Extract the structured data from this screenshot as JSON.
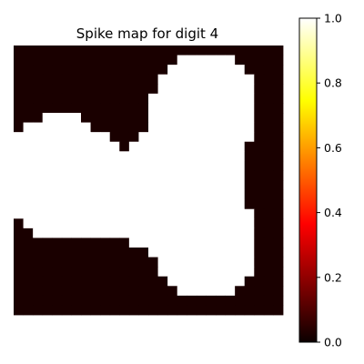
{
  "chart_data": {
    "type": "heatmap",
    "title": "Spike map for digit 4",
    "xlabel": "",
    "ylabel": "",
    "colormap": "hot",
    "colorbar": {
      "range": [
        0.0,
        1.0
      ],
      "ticks": [
        0.0,
        0.2,
        0.4,
        0.6,
        0.8,
        1.0
      ],
      "tick_labels": [
        "0.0",
        "0.2",
        "0.4",
        "0.6",
        "0.8",
        "1.0"
      ]
    },
    "grid": false,
    "axes_visible": false,
    "rows": 28,
    "cols": 28,
    "values": [
      [
        0,
        0,
        0,
        0,
        0,
        0,
        0,
        0,
        0,
        0,
        0,
        0,
        0,
        0,
        0,
        0,
        0,
        0,
        0,
        0,
        0,
        0,
        0,
        0,
        0,
        0,
        0,
        0
      ],
      [
        0,
        0,
        0,
        0,
        0,
        0,
        0,
        0,
        0,
        0,
        0,
        0,
        0,
        0,
        0,
        0,
        0,
        1,
        1,
        1,
        1,
        1,
        1,
        0,
        0,
        0,
        0,
        0
      ],
      [
        0,
        0,
        0,
        0,
        0,
        0,
        0,
        0,
        0,
        0,
        0,
        0,
        0,
        0,
        0,
        0,
        1,
        1,
        1,
        1,
        1,
        1,
        1,
        1,
        0,
        0,
        0,
        0
      ],
      [
        0,
        0,
        0,
        0,
        0,
        0,
        0,
        0,
        0,
        0,
        0,
        0,
        0,
        0,
        0,
        1,
        1,
        1,
        1,
        1,
        1,
        1,
        1,
        1,
        1,
        0,
        0,
        0
      ],
      [
        0,
        0,
        0,
        0,
        0,
        0,
        0,
        0,
        0,
        0,
        0,
        0,
        0,
        0,
        0,
        1,
        1,
        1,
        1,
        1,
        1,
        1,
        1,
        1,
        1,
        0,
        0,
        0
      ],
      [
        0,
        0,
        0,
        0,
        0,
        0,
        0,
        0,
        0,
        0,
        0,
        0,
        0,
        0,
        1,
        1,
        1,
        1,
        1,
        1,
        1,
        1,
        1,
        1,
        1,
        0,
        0,
        0
      ],
      [
        0,
        0,
        0,
        0,
        0,
        0,
        0,
        0,
        0,
        0,
        0,
        0,
        0,
        0,
        1,
        1,
        1,
        1,
        1,
        1,
        1,
        1,
        1,
        1,
        1,
        0,
        0,
        0
      ],
      [
        0,
        0,
        0,
        1,
        1,
        1,
        1,
        0,
        0,
        0,
        0,
        0,
        0,
        0,
        1,
        1,
        1,
        1,
        1,
        1,
        1,
        1,
        1,
        1,
        1,
        0,
        0,
        0
      ],
      [
        0,
        1,
        1,
        1,
        1,
        1,
        1,
        1,
        0,
        0,
        0,
        0,
        0,
        0,
        1,
        1,
        1,
        1,
        1,
        1,
        1,
        1,
        1,
        1,
        1,
        0,
        0,
        0
      ],
      [
        1,
        1,
        1,
        1,
        1,
        1,
        1,
        1,
        1,
        1,
        0,
        0,
        0,
        1,
        1,
        1,
        1,
        1,
        1,
        1,
        1,
        1,
        1,
        1,
        1,
        0,
        0,
        0
      ],
      [
        1,
        1,
        1,
        1,
        1,
        1,
        1,
        1,
        1,
        1,
        1,
        0,
        1,
        1,
        1,
        1,
        1,
        1,
        1,
        1,
        1,
        1,
        1,
        1,
        0,
        0,
        0,
        0
      ],
      [
        1,
        1,
        1,
        1,
        1,
        1,
        1,
        1,
        1,
        1,
        1,
        1,
        1,
        1,
        1,
        1,
        1,
        1,
        1,
        1,
        1,
        1,
        1,
        1,
        0,
        0,
        0,
        0
      ],
      [
        1,
        1,
        1,
        1,
        1,
        1,
        1,
        1,
        1,
        1,
        1,
        1,
        1,
        1,
        1,
        1,
        1,
        1,
        1,
        1,
        1,
        1,
        1,
        1,
        0,
        0,
        0,
        0
      ],
      [
        1,
        1,
        1,
        1,
        1,
        1,
        1,
        1,
        1,
        1,
        1,
        1,
        1,
        1,
        1,
        1,
        1,
        1,
        1,
        1,
        1,
        1,
        1,
        1,
        0,
        0,
        0,
        0
      ],
      [
        1,
        1,
        1,
        1,
        1,
        1,
        1,
        1,
        1,
        1,
        1,
        1,
        1,
        1,
        1,
        1,
        1,
        1,
        1,
        1,
        1,
        1,
        1,
        1,
        0,
        0,
        0,
        0
      ],
      [
        1,
        1,
        1,
        1,
        1,
        1,
        1,
        1,
        1,
        1,
        1,
        1,
        1,
        1,
        1,
        1,
        1,
        1,
        1,
        1,
        1,
        1,
        1,
        1,
        0,
        0,
        0,
        0
      ],
      [
        1,
        1,
        1,
        1,
        1,
        1,
        1,
        1,
        1,
        1,
        1,
        1,
        1,
        1,
        1,
        1,
        1,
        1,
        1,
        1,
        1,
        1,
        1,
        1,
        0,
        0,
        0,
        0
      ],
      [
        1,
        1,
        1,
        1,
        1,
        1,
        1,
        1,
        1,
        1,
        1,
        1,
        1,
        1,
        1,
        1,
        1,
        1,
        1,
        1,
        1,
        1,
        1,
        1,
        1,
        0,
        0,
        0
      ],
      [
        0,
        1,
        1,
        1,
        1,
        1,
        1,
        1,
        1,
        1,
        1,
        1,
        1,
        1,
        1,
        1,
        1,
        1,
        1,
        1,
        1,
        1,
        1,
        1,
        1,
        0,
        0,
        0
      ],
      [
        0,
        0,
        1,
        1,
        1,
        1,
        1,
        1,
        1,
        1,
        1,
        1,
        1,
        1,
        1,
        1,
        1,
        1,
        1,
        1,
        1,
        1,
        1,
        1,
        1,
        0,
        0,
        0
      ],
      [
        0,
        0,
        0,
        0,
        0,
        0,
        0,
        0,
        0,
        0,
        0,
        0,
        1,
        1,
        1,
        1,
        1,
        1,
        1,
        1,
        1,
        1,
        1,
        1,
        1,
        0,
        0,
        0
      ],
      [
        0,
        0,
        0,
        0,
        0,
        0,
        0,
        0,
        0,
        0,
        0,
        0,
        0,
        0,
        1,
        1,
        1,
        1,
        1,
        1,
        1,
        1,
        1,
        1,
        1,
        0,
        0,
        0
      ],
      [
        0,
        0,
        0,
        0,
        0,
        0,
        0,
        0,
        0,
        0,
        0,
        0,
        0,
        0,
        0,
        1,
        1,
        1,
        1,
        1,
        1,
        1,
        1,
        1,
        1,
        0,
        0,
        0
      ],
      [
        0,
        0,
        0,
        0,
        0,
        0,
        0,
        0,
        0,
        0,
        0,
        0,
        0,
        0,
        0,
        1,
        1,
        1,
        1,
        1,
        1,
        1,
        1,
        1,
        1,
        0,
        0,
        0
      ],
      [
        0,
        0,
        0,
        0,
        0,
        0,
        0,
        0,
        0,
        0,
        0,
        0,
        0,
        0,
        0,
        0,
        1,
        1,
        1,
        1,
        1,
        1,
        1,
        1,
        0,
        0,
        0,
        0
      ],
      [
        0,
        0,
        0,
        0,
        0,
        0,
        0,
        0,
        0,
        0,
        0,
        0,
        0,
        0,
        0,
        0,
        0,
        1,
        1,
        1,
        1,
        1,
        1,
        0,
        0,
        0,
        0,
        0
      ],
      [
        0,
        0,
        0,
        0,
        0,
        0,
        0,
        0,
        0,
        0,
        0,
        0,
        0,
        0,
        0,
        0,
        0,
        0,
        0,
        0,
        0,
        0,
        0,
        0,
        0,
        0,
        0,
        0
      ],
      [
        0,
        0,
        0,
        0,
        0,
        0,
        0,
        0,
        0,
        0,
        0,
        0,
        0,
        0,
        0,
        0,
        0,
        0,
        0,
        0,
        0,
        0,
        0,
        0,
        0,
        0,
        0,
        0
      ]
    ]
  }
}
